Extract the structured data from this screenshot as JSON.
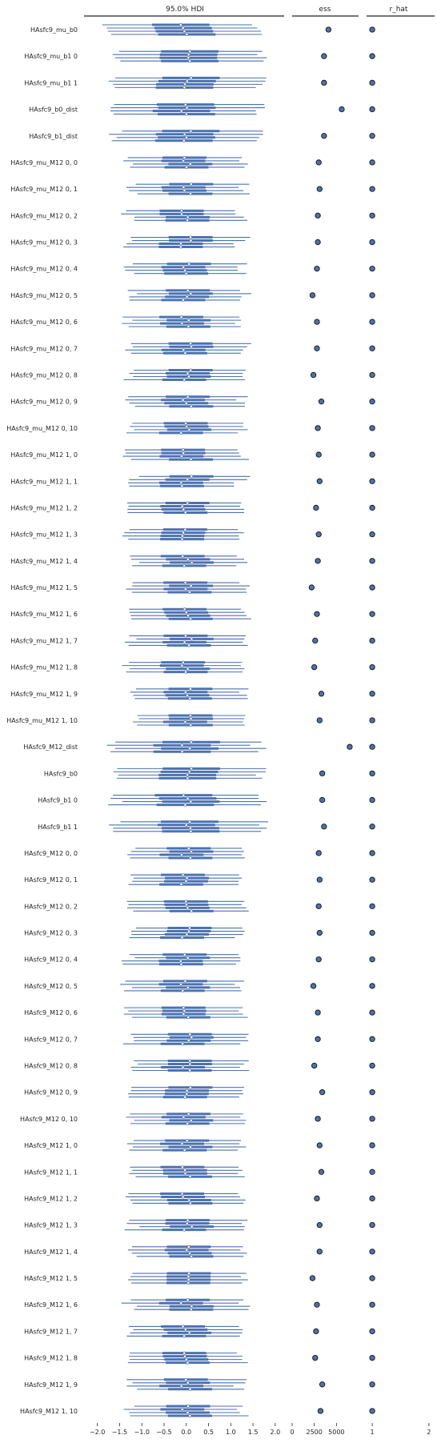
{
  "chart_data": {
    "type": "forest",
    "panels": [
      {
        "title": "95.0% HDI",
        "xlim": [
          -2.3,
          2.2
        ],
        "ticks": [
          -2.0,
          -1.5,
          -1.0,
          -0.5,
          0.0,
          0.5,
          1.0,
          1.5,
          2.0
        ],
        "tick_labels": [
          "−2.0",
          "−1.5",
          "−1.0",
          "−0.5",
          "0.0",
          "0.5",
          "1.0",
          "1.5",
          "2.0"
        ]
      },
      {
        "title": "ess",
        "xlim": [
          0,
          7500
        ],
        "ticks": [
          0,
          2500,
          5000
        ],
        "tick_labels": [
          "0",
          "2500",
          "5000"
        ]
      },
      {
        "title": "r_hat",
        "xlim": [
          0.9,
          2.1
        ],
        "ticks": [
          1,
          2
        ],
        "tick_labels": [
          "1",
          "2"
        ]
      }
    ],
    "chains": 4,
    "series_color": "#4c72b0",
    "rows": [
      {
        "label": "HAsfc9_mu_b0",
        "ess": 4100,
        "rhat": 1.0
      },
      {
        "label": "HAsfc9_mu_b1 0",
        "ess": 3600,
        "rhat": 1.0
      },
      {
        "label": "HAsfc9_mu_b1 1",
        "ess": 3600,
        "rhat": 1.0
      },
      {
        "label": "HAsfc9_b0_dist",
        "ess": 5600,
        "rhat": 1.0
      },
      {
        "label": "HAsfc9_b1_dist",
        "ess": 3600,
        "rhat": 1.0
      },
      {
        "label": "HAsfc9_mu_M12 0, 0",
        "ess": 3000,
        "rhat": 1.0
      },
      {
        "label": "HAsfc9_mu_M12 0, 1",
        "ess": 3100,
        "rhat": 1.0
      },
      {
        "label": "HAsfc9_mu_M12 0, 2",
        "ess": 2900,
        "rhat": 1.0
      },
      {
        "label": "HAsfc9_mu_M12 0, 3",
        "ess": 2900,
        "rhat": 1.0
      },
      {
        "label": "HAsfc9_mu_M12 0, 4",
        "ess": 2800,
        "rhat": 1.0
      },
      {
        "label": "HAsfc9_mu_M12 0, 5",
        "ess": 2300,
        "rhat": 1.0
      },
      {
        "label": "HAsfc9_mu_M12 0, 6",
        "ess": 2800,
        "rhat": 1.0
      },
      {
        "label": "HAsfc9_mu_M12 0, 7",
        "ess": 2800,
        "rhat": 1.0
      },
      {
        "label": "HAsfc9_mu_M12 0, 8",
        "ess": 2400,
        "rhat": 1.0
      },
      {
        "label": "HAsfc9_mu_M12 0, 9",
        "ess": 3300,
        "rhat": 1.0
      },
      {
        "label": "HAsfc9_mu_M12 0, 10",
        "ess": 2900,
        "rhat": 1.0
      },
      {
        "label": "HAsfc9_mu_M12 1, 0",
        "ess": 3000,
        "rhat": 1.0
      },
      {
        "label": "HAsfc9_mu_M12 1, 1",
        "ess": 3100,
        "rhat": 1.0
      },
      {
        "label": "HAsfc9_mu_M12 1, 2",
        "ess": 2700,
        "rhat": 1.0
      },
      {
        "label": "HAsfc9_mu_M12 1, 3",
        "ess": 3000,
        "rhat": 1.0
      },
      {
        "label": "HAsfc9_mu_M12 1, 4",
        "ess": 2900,
        "rhat": 1.0
      },
      {
        "label": "HAsfc9_mu_M12 1, 5",
        "ess": 2200,
        "rhat": 1.0
      },
      {
        "label": "HAsfc9_mu_M12 1, 6",
        "ess": 2800,
        "rhat": 1.0
      },
      {
        "label": "HAsfc9_mu_M12 1, 7",
        "ess": 2600,
        "rhat": 1.0
      },
      {
        "label": "HAsfc9_mu_M12 1, 8",
        "ess": 2500,
        "rhat": 1.0
      },
      {
        "label": "HAsfc9_mu_M12 1, 9",
        "ess": 3300,
        "rhat": 1.0
      },
      {
        "label": "HAsfc9_mu_M12 1, 10",
        "ess": 3100,
        "rhat": 1.0
      },
      {
        "label": "HAsfc9_M12_dist",
        "ess": 6500,
        "rhat": 1.0
      },
      {
        "label": "HAsfc9_b0",
        "ess": 3400,
        "rhat": 1.0
      },
      {
        "label": "HAsfc9_b1 0",
        "ess": 3400,
        "rhat": 1.0
      },
      {
        "label": "HAsfc9_b1 1",
        "ess": 3600,
        "rhat": 1.0
      },
      {
        "label": "HAsfc9_M12 0, 0",
        "ess": 3000,
        "rhat": 1.0
      },
      {
        "label": "HAsfc9_M12 0, 1",
        "ess": 3100,
        "rhat": 1.0
      },
      {
        "label": "HAsfc9_M12 0, 2",
        "ess": 3000,
        "rhat": 1.0
      },
      {
        "label": "HAsfc9_M12 0, 3",
        "ess": 3100,
        "rhat": 1.0
      },
      {
        "label": "HAsfc9_M12 0, 4",
        "ess": 3000,
        "rhat": 1.0
      },
      {
        "label": "HAsfc9_M12 0, 5",
        "ess": 2400,
        "rhat": 1.0
      },
      {
        "label": "HAsfc9_M12 0, 6",
        "ess": 2900,
        "rhat": 1.0
      },
      {
        "label": "HAsfc9_M12 0, 7",
        "ess": 2900,
        "rhat": 1.0
      },
      {
        "label": "HAsfc9_M12 0, 8",
        "ess": 2500,
        "rhat": 1.0
      },
      {
        "label": "HAsfc9_M12 0, 9",
        "ess": 3400,
        "rhat": 1.0
      },
      {
        "label": "HAsfc9_M12 0, 10",
        "ess": 2900,
        "rhat": 1.0
      },
      {
        "label": "HAsfc9_M12 1, 0",
        "ess": 3100,
        "rhat": 1.0
      },
      {
        "label": "HAsfc9_M12 1, 1",
        "ess": 3300,
        "rhat": 1.0
      },
      {
        "label": "HAsfc9_M12 1, 2",
        "ess": 2800,
        "rhat": 1.0
      },
      {
        "label": "HAsfc9_M12 1, 3",
        "ess": 3100,
        "rhat": 1.0
      },
      {
        "label": "HAsfc9_M12 1, 4",
        "ess": 3100,
        "rhat": 1.0
      },
      {
        "label": "HAsfc9_M12 1, 5",
        "ess": 2300,
        "rhat": 1.0
      },
      {
        "label": "HAsfc9_M12 1, 6",
        "ess": 2800,
        "rhat": 1.0
      },
      {
        "label": "HAsfc9_M12 1, 7",
        "ess": 2700,
        "rhat": 1.0
      },
      {
        "label": "HAsfc9_M12 1, 8",
        "ess": 2600,
        "rhat": 1.0
      },
      {
        "label": "HAsfc9_M12 1, 9",
        "ess": 3400,
        "rhat": 1.0
      },
      {
        "label": "HAsfc9_M12 1, 10",
        "ess": 3200,
        "rhat": 1.0
      }
    ]
  }
}
